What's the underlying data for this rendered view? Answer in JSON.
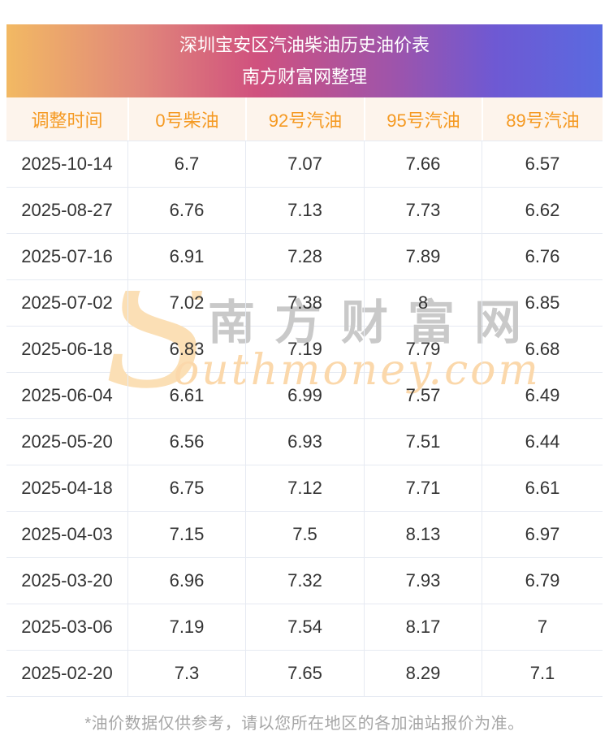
{
  "page": {
    "title": "深圳宝安区汽油柴油历史油价表",
    "subtitle": "南方财富网整理",
    "footnote": "*油价数据仅供参考，请以您所在地区的各加油站报价为准。"
  },
  "watermark": {
    "initial": "S",
    "cn": "南方财富网",
    "en": "outhmoney.com"
  },
  "colors": {
    "banner_gradient_left": "#f2b963",
    "banner_gradient_mid": "#d0517e",
    "banner_gradient_right": "#5a6ae0",
    "banner_text": "#ffffff",
    "column_header_bg": "#fdf4ec",
    "column_header_text": "#f59a23",
    "cell_text": "#333333",
    "divider": "#e6eaf2",
    "footnote_text": "#a6a6a6",
    "watermark_gray": "#c9c9c9",
    "watermark_peach": "#fbd8ab"
  },
  "chart_data": {
    "type": "table",
    "title": "深圳宝安区汽油柴油历史油价表",
    "subtitle": "南方财富网整理",
    "columns": [
      "调整时间",
      "0号柴油",
      "92号汽油",
      "95号汽油",
      "89号汽油"
    ],
    "rows": [
      [
        "2025-10-14",
        "6.7",
        "7.07",
        "7.66",
        "6.57"
      ],
      [
        "2025-08-27",
        "6.76",
        "7.13",
        "7.73",
        "6.62"
      ],
      [
        "2025-07-16",
        "6.91",
        "7.28",
        "7.89",
        "6.76"
      ],
      [
        "2025-07-02",
        "7.02",
        "7.38",
        "8",
        "6.85"
      ],
      [
        "2025-06-18",
        "6.83",
        "7.19",
        "7.79",
        "6.68"
      ],
      [
        "2025-06-04",
        "6.61",
        "6.99",
        "7.57",
        "6.49"
      ],
      [
        "2025-05-20",
        "6.56",
        "6.93",
        "7.51",
        "6.44"
      ],
      [
        "2025-04-18",
        "6.75",
        "7.12",
        "7.71",
        "6.61"
      ],
      [
        "2025-04-03",
        "7.15",
        "7.5",
        "8.13",
        "6.97"
      ],
      [
        "2025-03-20",
        "6.96",
        "7.32",
        "7.93",
        "6.79"
      ],
      [
        "2025-03-06",
        "7.19",
        "7.54",
        "8.17",
        "7"
      ],
      [
        "2025-02-20",
        "7.3",
        "7.65",
        "8.29",
        "7.1"
      ]
    ]
  }
}
